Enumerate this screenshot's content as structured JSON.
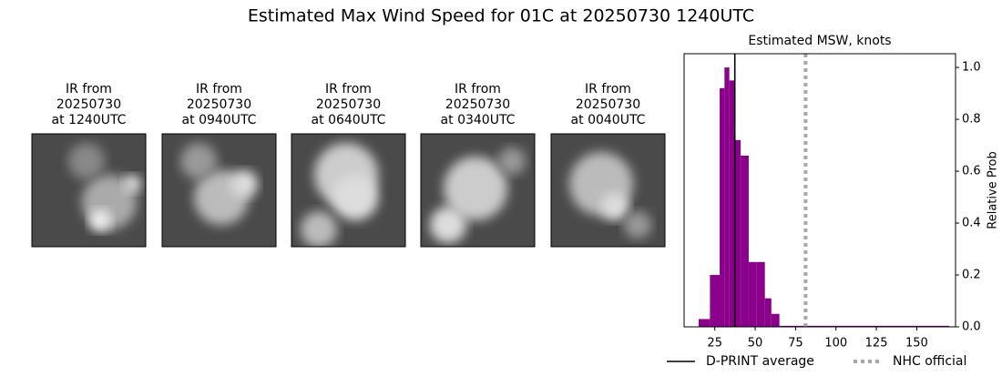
{
  "title": "Estimated Max Wind Speed for 01C at 20250730 1240UTC",
  "panels": [
    {
      "lines": [
        "IR from",
        "20250730",
        "at 1240UTC"
      ]
    },
    {
      "lines": [
        "IR from",
        "20250730",
        "at 0940UTC"
      ]
    },
    {
      "lines": [
        "IR from",
        "20250730",
        "at 0640UTC"
      ]
    },
    {
      "lines": [
        "IR from",
        "20250730",
        "at 0340UTC"
      ]
    },
    {
      "lines": [
        "IR from",
        "20250730",
        "at 0040UTC"
      ]
    }
  ],
  "chart_data": {
    "type": "histogram",
    "title": "Estimated MSW, knots",
    "ylabel": "Relative Prob",
    "color": "#8b008b",
    "bins": [
      15,
      22,
      28,
      31,
      34,
      37,
      41,
      46,
      51,
      56,
      60,
      65,
      170
    ],
    "counts": [
      0.03,
      0.2,
      0.92,
      1.0,
      0.95,
      0.72,
      0.66,
      0.25,
      0.25,
      0.11,
      0.05,
      0.004
    ],
    "xlim": [
      6,
      174
    ],
    "xticks": [
      25,
      50,
      75,
      100,
      125,
      150
    ],
    "ylim": [
      0,
      1.053
    ],
    "yticks": [
      {
        "value": 0,
        "label": "0.0"
      },
      {
        "value": 0.2,
        "label": "0.2"
      },
      {
        "value": 0.4,
        "label": "0.4"
      },
      {
        "value": 0.6,
        "label": "0.6"
      },
      {
        "value": 0.8,
        "label": "0.8"
      },
      {
        "value": 1,
        "label": "1.0"
      }
    ],
    "lines": [
      {
        "name": "D-PRINT average",
        "value": 37.4,
        "color": "#000000",
        "style": "solid"
      },
      {
        "name": "NHC official",
        "value": 81.2,
        "color": "#a9a9a9",
        "style": "dotted"
      }
    ]
  }
}
